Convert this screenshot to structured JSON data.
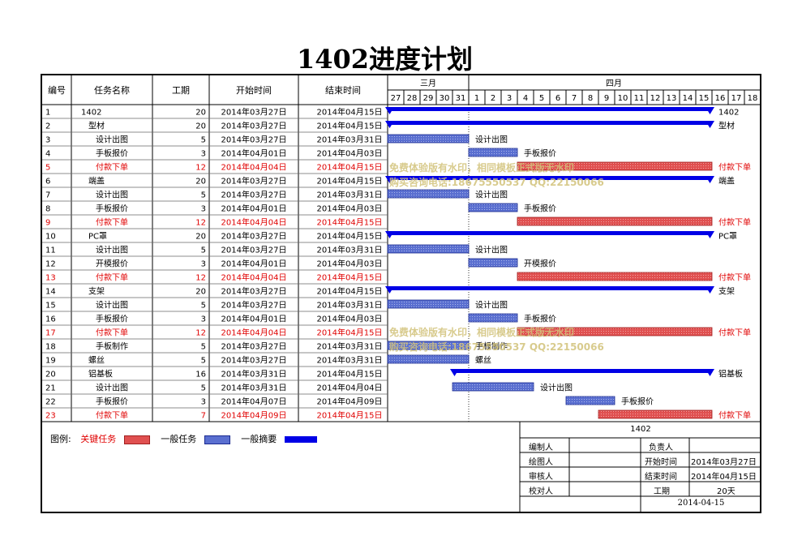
{
  "title": "1402进度计划",
  "header": {
    "col_id": "编号",
    "col_name": "任务名称",
    "col_dur": "工期",
    "col_start": "开始时间",
    "col_end": "结束时间",
    "month_mar": "三月",
    "month_apr": "四月",
    "days": [
      "27",
      "28",
      "29",
      "30",
      "31",
      "1",
      "2",
      "3",
      "4",
      "5",
      "6",
      "7",
      "8",
      "9",
      "10",
      "11",
      "12",
      "13",
      "14",
      "15",
      "16",
      "17",
      "18"
    ]
  },
  "watermark": {
    "line1": "免费体验版有水印，相同模板正式版无水印",
    "line2": "购买咨询电话:18675550537 QQ:22150066"
  },
  "legend": {
    "label": "图例:",
    "critical": "关键任务",
    "normal": "一般任务",
    "summary": "一般摘要"
  },
  "signoff": {
    "project": "1402",
    "compiler": "编制人",
    "owner": "负责人",
    "drawer": "绘图人",
    "start_label": "开始时间",
    "start_value": "2014年03月27日",
    "reviewer": "审核人",
    "end_label": "结束时间",
    "end_value": "2014年04月15日",
    "checker": "校对人",
    "dur_label": "工期",
    "dur_value": "20天",
    "date": "2014-04-15"
  },
  "colors": {
    "summary": "#0000e6",
    "normal": "#5a6fd0",
    "critical": "#e05050",
    "critical_text": "#e00000",
    "watermark": "#d2c27a"
  },
  "chart_data": {
    "type": "gantt",
    "date_range": [
      "2014-03-27",
      "2014-04-18"
    ],
    "tasks": [
      {
        "id": "1",
        "name": "1402",
        "duration": "20",
        "start": "2014年03月27日",
        "end": "2014年04月15日",
        "kind": "summary",
        "level": 0,
        "start_date": "2014-03-27",
        "end_date": "2014-04-15"
      },
      {
        "id": "2",
        "name": "型材",
        "duration": "20",
        "start": "2014年03月27日",
        "end": "2014年04月15日",
        "kind": "summary",
        "level": 1,
        "start_date": "2014-03-27",
        "end_date": "2014-04-15"
      },
      {
        "id": "3",
        "name": "设计出图",
        "duration": "5",
        "start": "2014年03月27日",
        "end": "2014年03月31日",
        "kind": "normal",
        "level": 2,
        "start_date": "2014-03-27",
        "end_date": "2014-03-31"
      },
      {
        "id": "4",
        "name": "手板报价",
        "duration": "3",
        "start": "2014年04月01日",
        "end": "2014年04月03日",
        "kind": "normal",
        "level": 2,
        "start_date": "2014-04-01",
        "end_date": "2014-04-03"
      },
      {
        "id": "5",
        "name": "付款下单",
        "duration": "12",
        "start": "2014年04月04日",
        "end": "2014年04月15日",
        "kind": "critical",
        "level": 2,
        "start_date": "2014-04-04",
        "end_date": "2014-04-15"
      },
      {
        "id": "6",
        "name": "端盖",
        "duration": "20",
        "start": "2014年03月27日",
        "end": "2014年04月15日",
        "kind": "summary",
        "level": 1,
        "start_date": "2014-03-27",
        "end_date": "2014-04-15"
      },
      {
        "id": "7",
        "name": "设计出图",
        "duration": "5",
        "start": "2014年03月27日",
        "end": "2014年03月31日",
        "kind": "normal",
        "level": 2,
        "start_date": "2014-03-27",
        "end_date": "2014-03-31"
      },
      {
        "id": "8",
        "name": "手板报价",
        "duration": "3",
        "start": "2014年04月01日",
        "end": "2014年04月03日",
        "kind": "normal",
        "level": 2,
        "start_date": "2014-04-01",
        "end_date": "2014-04-03"
      },
      {
        "id": "9",
        "name": "付款下单",
        "duration": "12",
        "start": "2014年04月04日",
        "end": "2014年04月15日",
        "kind": "critical",
        "level": 2,
        "start_date": "2014-04-04",
        "end_date": "2014-04-15"
      },
      {
        "id": "10",
        "name": "PC罩",
        "duration": "20",
        "start": "2014年03月27日",
        "end": "2014年04月15日",
        "kind": "summary",
        "level": 1,
        "start_date": "2014-03-27",
        "end_date": "2014-04-15"
      },
      {
        "id": "11",
        "name": "设计出图",
        "duration": "5",
        "start": "2014年03月27日",
        "end": "2014年03月31日",
        "kind": "normal",
        "level": 2,
        "start_date": "2014-03-27",
        "end_date": "2014-03-31"
      },
      {
        "id": "12",
        "name": "开模报价",
        "duration": "3",
        "start": "2014年04月01日",
        "end": "2014年04月03日",
        "kind": "normal",
        "level": 2,
        "start_date": "2014-04-01",
        "end_date": "2014-04-03"
      },
      {
        "id": "13",
        "name": "付款下单",
        "duration": "12",
        "start": "2014年04月04日",
        "end": "2014年04月15日",
        "kind": "critical",
        "level": 2,
        "start_date": "2014-04-04",
        "end_date": "2014-04-15"
      },
      {
        "id": "14",
        "name": "支架",
        "duration": "20",
        "start": "2014年03月27日",
        "end": "2014年04月15日",
        "kind": "summary",
        "level": 1,
        "start_date": "2014-03-27",
        "end_date": "2014-04-15"
      },
      {
        "id": "15",
        "name": "设计出图",
        "duration": "5",
        "start": "2014年03月27日",
        "end": "2014年03月31日",
        "kind": "normal",
        "level": 2,
        "start_date": "2014-03-27",
        "end_date": "2014-03-31"
      },
      {
        "id": "16",
        "name": "手板报价",
        "duration": "3",
        "start": "2014年04月01日",
        "end": "2014年04月03日",
        "kind": "normal",
        "level": 2,
        "start_date": "2014-04-01",
        "end_date": "2014-04-03"
      },
      {
        "id": "17",
        "name": "付款下单",
        "duration": "12",
        "start": "2014年04月04日",
        "end": "2014年04月15日",
        "kind": "critical",
        "level": 2,
        "start_date": "2014-04-04",
        "end_date": "2014-04-15"
      },
      {
        "id": "18",
        "name": "手板制作",
        "duration": "5",
        "start": "2014年03月27日",
        "end": "2014年03月31日",
        "kind": "normal",
        "level": 2,
        "start_date": "2014-03-27",
        "end_date": "2014-03-31"
      },
      {
        "id": "19",
        "name": "螺丝",
        "duration": "5",
        "start": "2014年03月27日",
        "end": "2014年03月31日",
        "kind": "normal",
        "level": 1,
        "start_date": "2014-03-27",
        "end_date": "2014-03-31"
      },
      {
        "id": "20",
        "name": "铝基板",
        "duration": "16",
        "start": "2014年03月31日",
        "end": "2014年04月15日",
        "kind": "summary",
        "level": 1,
        "start_date": "2014-03-31",
        "end_date": "2014-04-15"
      },
      {
        "id": "21",
        "name": "设计出图",
        "duration": "5",
        "start": "2014年03月31日",
        "end": "2014年04月04日",
        "kind": "normal",
        "level": 2,
        "start_date": "2014-03-31",
        "end_date": "2014-04-04"
      },
      {
        "id": "22",
        "name": "手板报价",
        "duration": "3",
        "start": "2014年04月07日",
        "end": "2014年04月09日",
        "kind": "normal",
        "level": 2,
        "start_date": "2014-04-07",
        "end_date": "2014-04-09"
      },
      {
        "id": "23",
        "name": "付款下单",
        "duration": "7",
        "start": "2014年04月09日",
        "end": "2014年04月15日",
        "kind": "critical",
        "level": 2,
        "start_date": "2014-04-09",
        "end_date": "2014-04-15"
      }
    ]
  }
}
